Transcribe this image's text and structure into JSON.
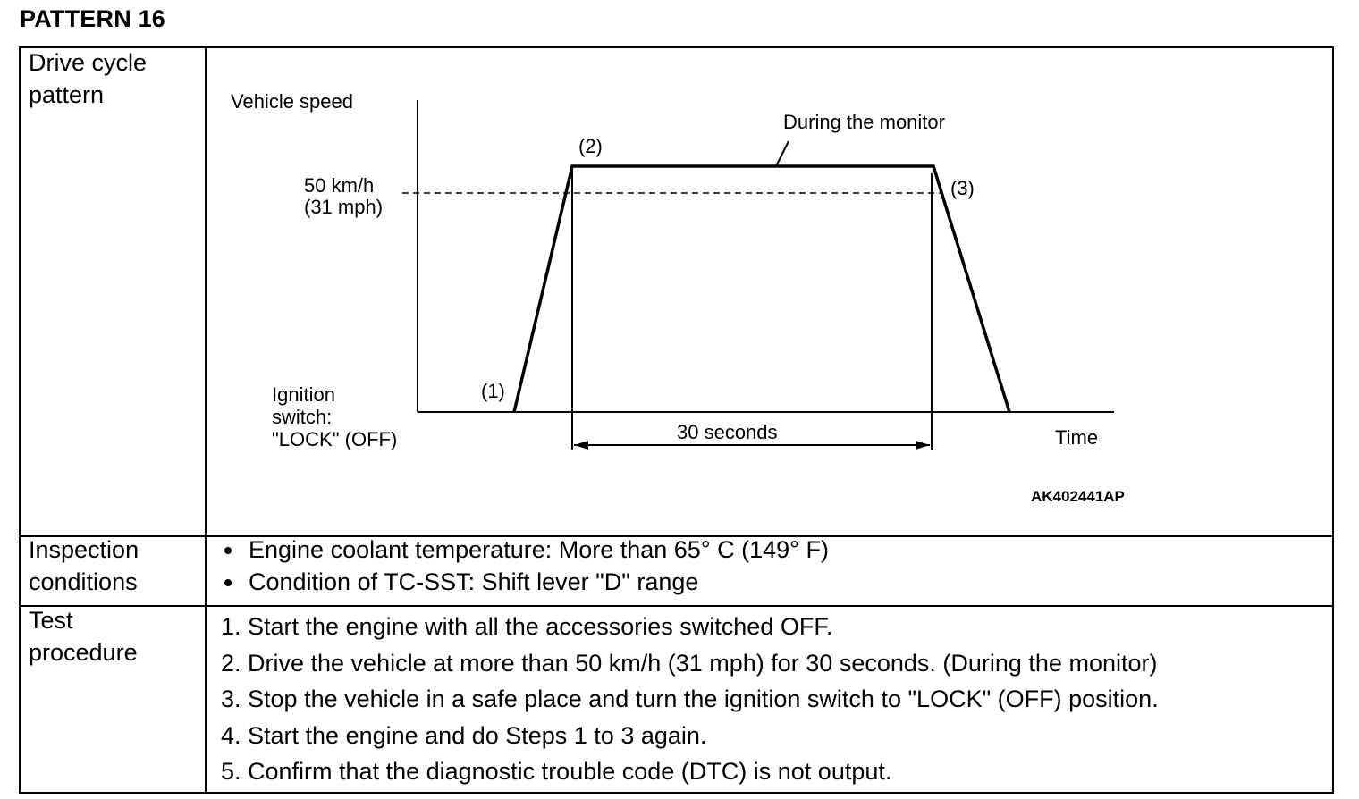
{
  "page": {
    "title": "PATTERN 16"
  },
  "rows": {
    "drive_cycle": {
      "label_line1": "Drive cycle",
      "label_line2": "pattern"
    },
    "inspection": {
      "label_line1": "Inspection",
      "label_line2": "conditions",
      "items": [
        "Engine coolant temperature: More than 65° C (149° F)",
        "Condition of TC-SST: Shift lever \"D\" range"
      ]
    },
    "test": {
      "label_line1": "Test",
      "label_line2": "procedure",
      "steps": [
        "1. Start the engine with all the accessories switched OFF.",
        "2. Drive the vehicle at more than 50 km/h (31 mph) for 30 seconds. (During the monitor)",
        "3. Stop the vehicle in a safe place and turn the ignition switch to \"LOCK\" (OFF) position.",
        "4. Start the engine and do Steps 1 to 3 again.",
        "5. Confirm that the diagnostic trouble code (DTC) is not output."
      ]
    }
  },
  "diagram": {
    "y_axis_label": "Vehicle speed",
    "x_axis_label": "Time",
    "threshold_line1": "50 km/h",
    "threshold_line2": "(31 mph)",
    "ignition_line1": "Ignition",
    "ignition_line2": "switch:",
    "ignition_line3": "\"LOCK\" (OFF)",
    "point1": "(1)",
    "point2": "(2)",
    "point3": "(3)",
    "monitor_label": "During the monitor",
    "duration_label": "30 seconds",
    "figure_code": "AK402441AP"
  }
}
